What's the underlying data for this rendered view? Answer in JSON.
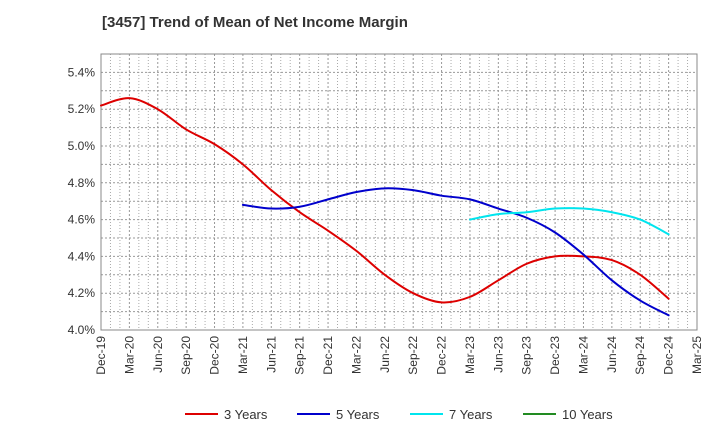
{
  "title": "[3457]  Trend of Mean of Net Income Margin",
  "chart_data": {
    "type": "line",
    "title": "[3457]  Trend of Mean of Net Income Margin",
    "xlabel": "",
    "ylabel": "",
    "x_ticks": [
      "Dec-19",
      "Mar-20",
      "Jun-20",
      "Sep-20",
      "Dec-20",
      "Mar-21",
      "Jun-21",
      "Sep-21",
      "Dec-21",
      "Mar-22",
      "Jun-22",
      "Sep-22",
      "Dec-22",
      "Mar-23",
      "Jun-23",
      "Sep-23",
      "Dec-23",
      "Mar-24",
      "Jun-24",
      "Sep-24",
      "Dec-24",
      "Mar-25"
    ],
    "y_ticks": [
      "4.0%",
      "4.2%",
      "4.4%",
      "4.6%",
      "4.8%",
      "5.0%",
      "5.2%",
      "5.4%"
    ],
    "y_tick_values": [
      4.0,
      4.2,
      4.4,
      4.6,
      4.8,
      5.0,
      5.2,
      5.4
    ],
    "ylim": [
      4.0,
      5.5
    ],
    "grid": true,
    "legend_position": "bottom",
    "series": [
      {
        "name": "3 Years",
        "color": "#dd0000",
        "x": [
          "Dec-19",
          "Mar-20",
          "Jun-20",
          "Sep-20",
          "Dec-20",
          "Mar-21",
          "Jun-21",
          "Sep-21",
          "Dec-21",
          "Mar-22",
          "Jun-22",
          "Sep-22",
          "Dec-22",
          "Mar-23",
          "Jun-23",
          "Sep-23",
          "Dec-23",
          "Mar-24",
          "Jun-24",
          "Sep-24",
          "Dec-24"
        ],
        "values": [
          5.22,
          5.26,
          5.2,
          5.09,
          5.01,
          4.9,
          4.76,
          4.64,
          4.54,
          4.43,
          4.3,
          4.2,
          4.15,
          4.18,
          4.27,
          4.36,
          4.4,
          4.4,
          4.38,
          4.3,
          4.17
        ]
      },
      {
        "name": "5 Years",
        "color": "#0000cc",
        "x": [
          "Mar-21",
          "Jun-21",
          "Sep-21",
          "Dec-21",
          "Mar-22",
          "Jun-22",
          "Sep-22",
          "Dec-22",
          "Mar-23",
          "Jun-23",
          "Sep-23",
          "Dec-23",
          "Mar-24",
          "Jun-24",
          "Sep-24",
          "Dec-24"
        ],
        "values": [
          4.68,
          4.66,
          4.67,
          4.71,
          4.75,
          4.77,
          4.76,
          4.73,
          4.71,
          4.66,
          4.61,
          4.53,
          4.41,
          4.27,
          4.16,
          4.08
        ]
      },
      {
        "name": "7 Years",
        "color": "#00e5ee",
        "x": [
          "Mar-23",
          "Jun-23",
          "Sep-23",
          "Dec-23",
          "Mar-24",
          "Jun-24",
          "Sep-24",
          "Dec-24"
        ],
        "values": [
          4.6,
          4.63,
          4.64,
          4.66,
          4.66,
          4.64,
          4.6,
          4.52
        ]
      },
      {
        "name": "10 Years",
        "color": "#228b22",
        "x": [],
        "values": []
      }
    ]
  }
}
